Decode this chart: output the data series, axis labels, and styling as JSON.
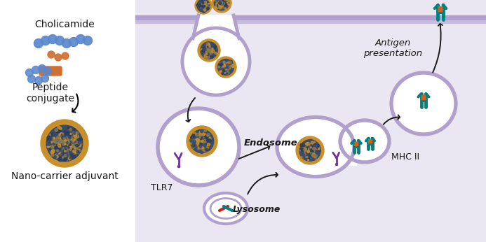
{
  "bg_color": "#ffffff",
  "cell_bg": "#eae6f2",
  "membrane_dark": "#b0a0cc",
  "membrane_light": "#c8bcdc",
  "np_outer": "#c8902a",
  "np_inner": "#3a4a6a",
  "tlr7_color": "#7030a0",
  "mhc_color": "#008080",
  "antigen_orange": "#d06020",
  "arrow_color": "#1a1a1a",
  "text_color": "#1a1a1a",
  "blue_mol": "#5a88cc",
  "orange_mol": "#d07030",
  "label_cholicamide": "Cholicamide",
  "label_peptide": "Peptide\nconjugate",
  "label_nano": "Nano-carrier adjuvant",
  "label_endosome": "Endosome",
  "label_tlr7": "TLR7",
  "label_lysosome": "Lysosome",
  "label_mhcii": "MHC II",
  "label_antigen": "Antigen\npresentation",
  "fig_width": 6.93,
  "fig_height": 3.46,
  "dpi": 100
}
